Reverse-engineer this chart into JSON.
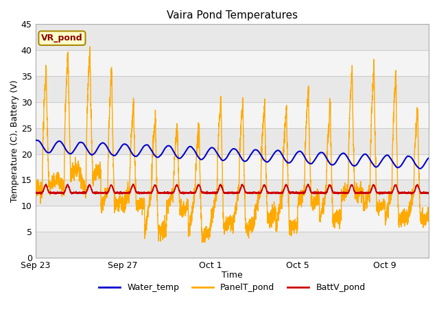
{
  "title": "Vaira Pond Temperatures",
  "xlabel": "Time",
  "ylabel": "Temperature (C), Battery (V)",
  "ylim": [
    0,
    45
  ],
  "yticks": [
    0,
    5,
    10,
    15,
    20,
    25,
    30,
    35,
    40,
    45
  ],
  "xtick_labels": [
    "Sep 23",
    "Sep 27",
    "Oct 1",
    "Oct 5",
    "Oct 9"
  ],
  "xtick_pos": [
    0,
    4,
    8,
    12,
    16
  ],
  "water_color": "#0000cc",
  "panel_color": "#ffaa00",
  "batt_color": "#cc0000",
  "plot_bg": "#ffffff",
  "band_color_dark": "#e8e8e8",
  "band_color_light": "#f4f4f4",
  "grid_color": "#cccccc",
  "annotation_text": "VR_pond",
  "annotation_bg": "#ffffcc",
  "annotation_border": "#aa8800",
  "legend_water": "Water_temp",
  "legend_panel": "PanelT_pond",
  "legend_batt": "BattV_pond",
  "end_day": 18,
  "n_points": 3600
}
